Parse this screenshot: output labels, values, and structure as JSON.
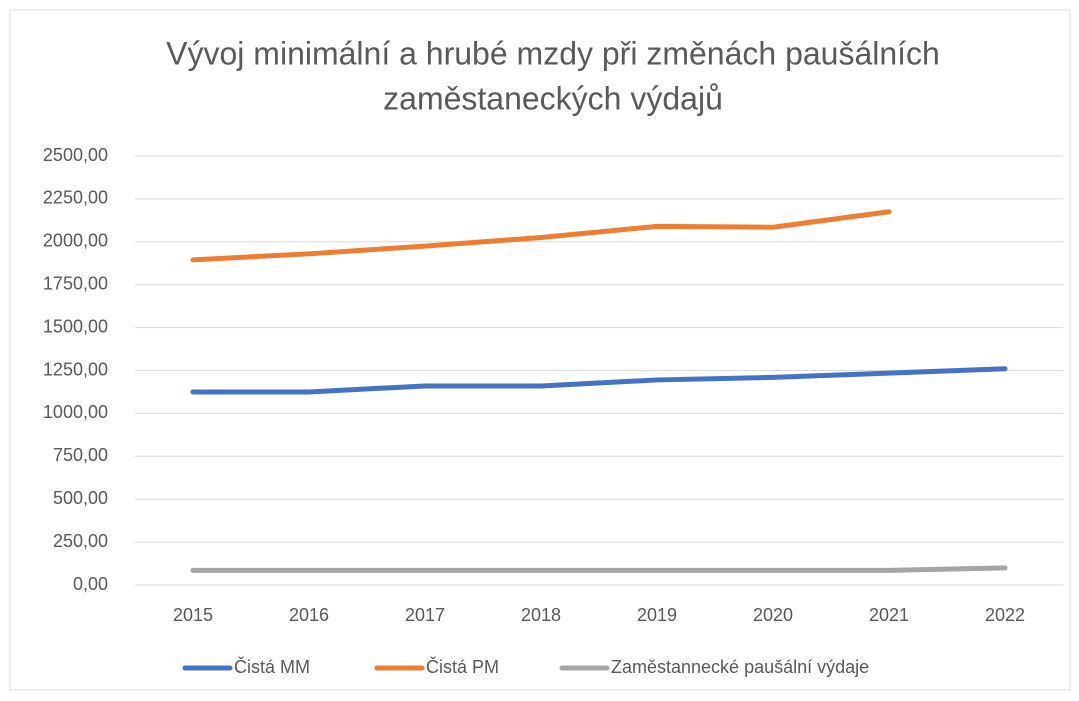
{
  "chart_data": {
    "type": "line",
    "title": [
      "Vývoj minimální a hrubé mzdy při změnách paušálních",
      "zaměstaneckých výdajů"
    ],
    "categories": [
      "2015",
      "2016",
      "2017",
      "2018",
      "2019",
      "2020",
      "2021",
      "2022"
    ],
    "series": [
      {
        "name": "Čistá MM",
        "color": "#4472c4",
        "values": [
          1125,
          1125,
          1160,
          1160,
          1195,
          1210,
          1235,
          1260
        ]
      },
      {
        "name": "Čistá PM",
        "color": "#ed7d31",
        "values": [
          1895,
          1930,
          1975,
          2025,
          2090,
          2085,
          2175,
          null
        ]
      },
      {
        "name": "Zaměstannecké paušální výdaje",
        "color": "#a5a5a5",
        "values": [
          85,
          85,
          85,
          85,
          85,
          85,
          85,
          100
        ]
      }
    ],
    "ylim": [
      0,
      2500
    ],
    "yticks": [
      {
        "value": 0,
        "label": "0,00"
      },
      {
        "value": 250,
        "label": "250,00"
      },
      {
        "value": 500,
        "label": "500,00"
      },
      {
        "value": 750,
        "label": "750,00"
      },
      {
        "value": 1000,
        "label": "1000,00"
      },
      {
        "value": 1250,
        "label": "1250,00"
      },
      {
        "value": 1500,
        "label": "1500,00"
      },
      {
        "value": 1750,
        "label": "1750,00"
      },
      {
        "value": 2000,
        "label": "2000,00"
      },
      {
        "value": 2250,
        "label": "2250,00"
      },
      {
        "value": 2500,
        "label": "2500,00"
      }
    ],
    "grid": true,
    "legend": "bottom"
  }
}
